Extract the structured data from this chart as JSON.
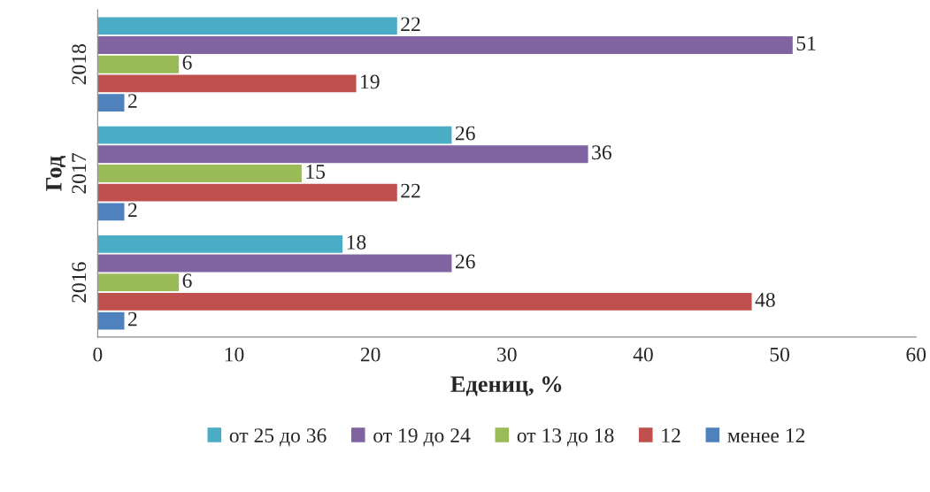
{
  "chart_data": {
    "type": "bar",
    "orientation": "horizontal",
    "xlabel": "Едениц, %",
    "ylabel": "Год",
    "categories": [
      "2018",
      "2017",
      "2016"
    ],
    "series": [
      {
        "name": "от 25 до 36",
        "color": "#4bacc6",
        "values": [
          22,
          26,
          18
        ]
      },
      {
        "name": "от 19 до 24",
        "color": "#8064a2",
        "values": [
          51,
          36,
          26
        ]
      },
      {
        "name": "от 13 до 18",
        "color": "#9bbb59",
        "values": [
          6,
          15,
          6
        ]
      },
      {
        "name": "12",
        "color": "#c0504d",
        "values": [
          19,
          22,
          48
        ]
      },
      {
        "name": "менее 12",
        "color": "#4f81bd",
        "values": [
          2,
          2,
          2
        ]
      }
    ],
    "xlim": [
      0,
      60
    ],
    "xticks": [
      0,
      10,
      20,
      30,
      40,
      50,
      60
    ],
    "data_labels": true,
    "grid": false,
    "legend": "bottom"
  }
}
